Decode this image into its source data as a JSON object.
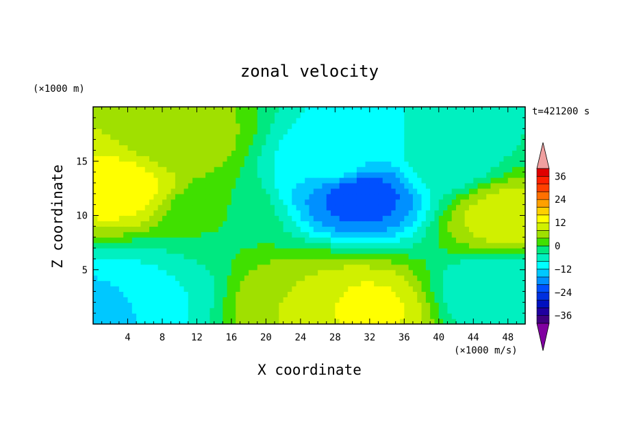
{
  "chart_data": {
    "type": "heatmap",
    "title": "zonal velocity",
    "xlabel": "X coordinate",
    "ylabel": "Z coordinate",
    "x_unit": "(×1000 m/s)",
    "y_unit": "(×1000 m)",
    "time_label": "t=421200 s",
    "xlim": [
      0,
      50
    ],
    "ylim": [
      0,
      20
    ],
    "x_ticks": [
      4,
      8,
      12,
      16,
      20,
      24,
      28,
      32,
      36,
      40,
      44,
      48
    ],
    "y_ticks": [
      5,
      10,
      15
    ],
    "colorbar": {
      "levels": [
        -40,
        -36,
        -32,
        -28,
        -24,
        -20,
        -16,
        -12,
        -8,
        -4,
        0,
        4,
        8,
        12,
        16,
        20,
        24,
        28,
        32,
        36,
        40
      ],
      "tick_labels": [
        "36",
        "24",
        "12",
        "0",
        "−12",
        "−24",
        "−36"
      ],
      "tick_values": [
        36,
        24,
        12,
        0,
        -12,
        -24,
        -36
      ],
      "colors": [
        "#400080",
        "#2000a0",
        "#0010c0",
        "#0030e0",
        "#0050ff",
        "#0090ff",
        "#00c8ff",
        "#00ffff",
        "#00f0c0",
        "#00e880",
        "#40e000",
        "#a0e000",
        "#d0f000",
        "#ffff00",
        "#ffd000",
        "#ffa000",
        "#ff7000",
        "#ff4000",
        "#ff2000",
        "#e00000"
      ],
      "under_color": "#8000a0",
      "over_color": "#f0a0a0"
    },
    "features": [
      {
        "x": 3,
        "z": 12.5,
        "value": 14
      },
      {
        "x": 10,
        "z": 17,
        "value": 6
      },
      {
        "x": 28,
        "z": 15,
        "value": -10
      },
      {
        "x": 31,
        "z": 12,
        "value": -22
      },
      {
        "x": 41,
        "z": 15,
        "value": -6
      },
      {
        "x": 31,
        "z": 1.5,
        "value": 13
      },
      {
        "x": 24,
        "z": 2,
        "value": 8
      },
      {
        "x": 6,
        "z": 3,
        "value": -8
      },
      {
        "x": 2,
        "z": 2,
        "value": -14
      },
      {
        "x": 48,
        "z": 10,
        "value": 10
      },
      {
        "x": 47,
        "z": 3,
        "value": -8
      },
      {
        "x": 14,
        "z": 10,
        "value": 0
      }
    ]
  }
}
